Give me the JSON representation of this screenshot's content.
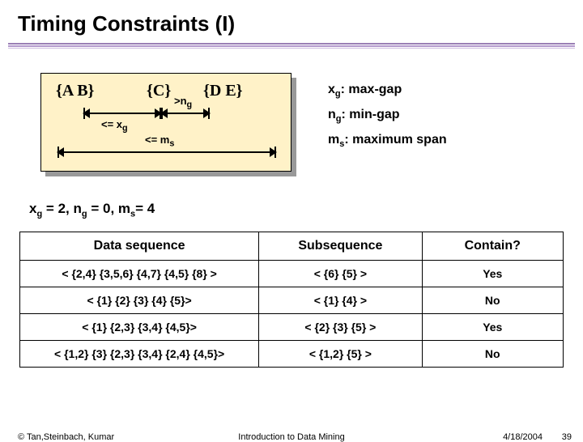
{
  "title": "Timing Constraints (I)",
  "diagram": {
    "background": "#fff2c8",
    "sets": {
      "AB": "{A   B}",
      "C": "{C}",
      "DE": "{D   E}"
    },
    "xg_label": "<= x",
    "xg_sub": "g",
    "ng_label": ">n",
    "ng_sub": "g",
    "ms_label": "<= m",
    "ms_sub": "s"
  },
  "legend": {
    "xg": {
      "var": "x",
      "sub": "g",
      "text": ": max-gap"
    },
    "ng": {
      "var": "n",
      "sub": "g",
      "text": ": min-gap"
    },
    "ms": {
      "var": "m",
      "sub": "s",
      "text": ": maximum span"
    }
  },
  "params": "x_g = 2, n_g = 0, m_s= 4",
  "params_display_prefix": "x",
  "params_pieces": [
    [
      "x",
      "g",
      " = 2, "
    ],
    [
      "n",
      "g",
      " = 0, "
    ],
    [
      "m",
      "s",
      "= 4"
    ]
  ],
  "table": {
    "headers": [
      "Data sequence",
      "Subsequence",
      "Contain?"
    ],
    "rows": [
      [
        "< {2,4} {3,5,6} {4,7} {4,5} {8} >",
        "< {6} {5} >",
        "Yes"
      ],
      [
        "< {1} {2} {3} {4} {5}>",
        "< {1} {4} >",
        "No"
      ],
      [
        "< {1} {2,3} {3,4} {4,5}>",
        "< {2} {3} {5} >",
        "Yes"
      ],
      [
        "< {1,2} {3} {2,3} {3,4} {2,4} {4,5}>",
        "< {1,2} {5} >",
        "No"
      ]
    ]
  },
  "footer": {
    "left": "© Tan,Steinbach, Kumar",
    "center": "Introduction to Data Mining",
    "date": "4/18/2004",
    "page": "39"
  }
}
